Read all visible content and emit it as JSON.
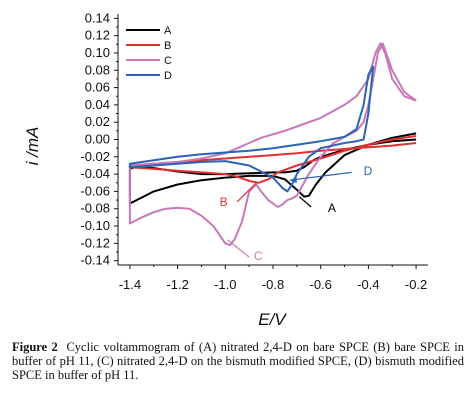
{
  "chart_data": {
    "type": "line",
    "title": "",
    "xlabel": "E/V",
    "ylabel": "i /mA",
    "xlim": [
      -1.45,
      -0.15
    ],
    "ylim": [
      -0.145,
      0.145
    ],
    "xticks": [
      "-1.4",
      "-1.2",
      "-1.0",
      "-0.8",
      "-0.6",
      "-0.4",
      "-0.2"
    ],
    "yticks": [
      "0.14",
      "0.12",
      "0.10",
      "0.08",
      "0.06",
      "0.04",
      "0.02",
      "0.00",
      "-0.02",
      "-0.04",
      "-0.06",
      "-0.08",
      "-0.10",
      "-0.12",
      "-0.14"
    ],
    "legend_position": "top-left",
    "series": [
      {
        "name": "A",
        "color": "#000000",
        "x": [
          -0.2,
          -0.3,
          -0.4,
          -0.5,
          -0.55,
          -0.6,
          -0.63,
          -0.65,
          -0.67,
          -0.7,
          -0.75,
          -0.8,
          -0.9,
          -1.0,
          -1.1,
          -1.2,
          -1.3,
          -1.37,
          -1.4,
          -1.4,
          -1.35,
          -1.3,
          -1.2,
          -1.1,
          -1.0,
          -0.9,
          -0.8,
          -0.75,
          -0.7,
          -0.67,
          -0.65,
          -0.62,
          -0.58,
          -0.5,
          -0.4,
          -0.3,
          -0.2
        ],
        "y": [
          0.0,
          -0.002,
          -0.006,
          -0.012,
          -0.016,
          -0.02,
          -0.024,
          -0.028,
          -0.032,
          -0.036,
          -0.038,
          -0.038,
          -0.039,
          -0.04,
          -0.04,
          -0.037,
          -0.033,
          -0.031,
          -0.034,
          -0.074,
          -0.067,
          -0.06,
          -0.052,
          -0.047,
          -0.044,
          -0.042,
          -0.042,
          -0.046,
          -0.058,
          -0.066,
          -0.065,
          -0.052,
          -0.038,
          -0.018,
          -0.006,
          0.002,
          0.007
        ]
      },
      {
        "name": "B",
        "color": "#e03030",
        "x": [
          -0.2,
          -0.3,
          -0.4,
          -0.5,
          -0.6,
          -0.7,
          -0.8,
          -0.9,
          -1.0,
          -1.1,
          -1.2,
          -1.3,
          -1.4,
          -1.4,
          -1.3,
          -1.2,
          -1.1,
          -1.0,
          -0.95,
          -0.9,
          -0.86,
          -0.82,
          -0.78,
          -0.7,
          -0.6,
          -0.5,
          -0.4,
          -0.3,
          -0.2
        ],
        "y": [
          -0.004,
          -0.007,
          -0.009,
          -0.011,
          -0.013,
          -0.016,
          -0.018,
          -0.02,
          -0.022,
          -0.024,
          -0.026,
          -0.028,
          -0.03,
          -0.032,
          -0.034,
          -0.036,
          -0.038,
          -0.04,
          -0.043,
          -0.048,
          -0.05,
          -0.046,
          -0.038,
          -0.03,
          -0.022,
          -0.013,
          -0.006,
          0.0,
          0.004
        ]
      },
      {
        "name": "C",
        "color": "#c878b8",
        "x": [
          -0.2,
          -0.25,
          -0.3,
          -0.33,
          -0.35,
          -0.37,
          -0.4,
          -0.45,
          -0.5,
          -0.6,
          -0.7,
          -0.75,
          -0.8,
          -0.85,
          -0.9,
          -0.95,
          -1.0,
          -1.1,
          -1.2,
          -1.3,
          -1.4,
          -1.4,
          -1.35,
          -1.3,
          -1.25,
          -1.2,
          -1.15,
          -1.1,
          -1.05,
          -1.0,
          -0.98,
          -0.96,
          -0.93,
          -0.9,
          -0.87,
          -0.85,
          -0.82,
          -0.78,
          -0.76,
          -0.74,
          -0.72,
          -0.7,
          -0.68,
          -0.65,
          -0.6,
          -0.55,
          -0.5,
          -0.45,
          -0.42,
          -0.4,
          -0.38,
          -0.36,
          -0.34,
          -0.3,
          -0.25,
          -0.2
        ],
        "y": [
          0.045,
          0.05,
          0.07,
          0.1,
          0.111,
          0.1,
          0.07,
          0.05,
          0.04,
          0.025,
          0.015,
          0.01,
          0.006,
          0.002,
          -0.004,
          -0.01,
          -0.016,
          -0.022,
          -0.026,
          -0.028,
          -0.03,
          -0.097,
          -0.09,
          -0.084,
          -0.08,
          -0.079,
          -0.08,
          -0.088,
          -0.1,
          -0.12,
          -0.122,
          -0.115,
          -0.095,
          -0.06,
          -0.052,
          -0.06,
          -0.07,
          -0.078,
          -0.075,
          -0.07,
          -0.068,
          -0.065,
          -0.055,
          -0.04,
          -0.02,
          -0.005,
          0.003,
          0.01,
          0.02,
          0.04,
          0.07,
          0.1,
          0.111,
          0.08,
          0.055,
          0.045
        ]
      },
      {
        "name": "D",
        "color": "#2a63b8",
        "x": [
          -0.38,
          -0.4,
          -0.42,
          -0.45,
          -0.5,
          -0.6,
          -0.7,
          -0.8,
          -0.9,
          -1.0,
          -1.1,
          -1.2,
          -1.3,
          -1.4,
          -1.4,
          -1.3,
          -1.2,
          -1.1,
          -1.0,
          -0.9,
          -0.8,
          -0.76,
          -0.74,
          -0.72,
          -0.7,
          -0.65,
          -0.6,
          -0.5,
          -0.45,
          -0.42,
          -0.4,
          -0.38
        ],
        "y": [
          0.085,
          0.075,
          0.04,
          0.012,
          0.003,
          -0.002,
          -0.006,
          -0.01,
          -0.013,
          -0.015,
          -0.017,
          -0.02,
          -0.024,
          -0.028,
          -0.032,
          -0.03,
          -0.028,
          -0.026,
          -0.025,
          -0.03,
          -0.044,
          -0.056,
          -0.06,
          -0.052,
          -0.04,
          -0.02,
          -0.01,
          -0.004,
          -0.002,
          0.0,
          0.03,
          0.085
        ]
      }
    ],
    "annotations": [
      {
        "label": "A",
        "color": "#000000"
      },
      {
        "label": "B",
        "color": "#e03030"
      },
      {
        "label": "C",
        "color": "#c878b8"
      },
      {
        "label": "D",
        "color": "#2a63b8"
      }
    ]
  },
  "caption": {
    "label": "Figure 2",
    "text": "Cyclic voltammogram of (A) nitrated 2,4-D on bare SPCE (B) bare SPCE in buffer of pH 11, (C) nitrated 2,4-D on the bismuth modified SPCE, (D) bismuth modified SPCE in buffer of pH 11."
  }
}
